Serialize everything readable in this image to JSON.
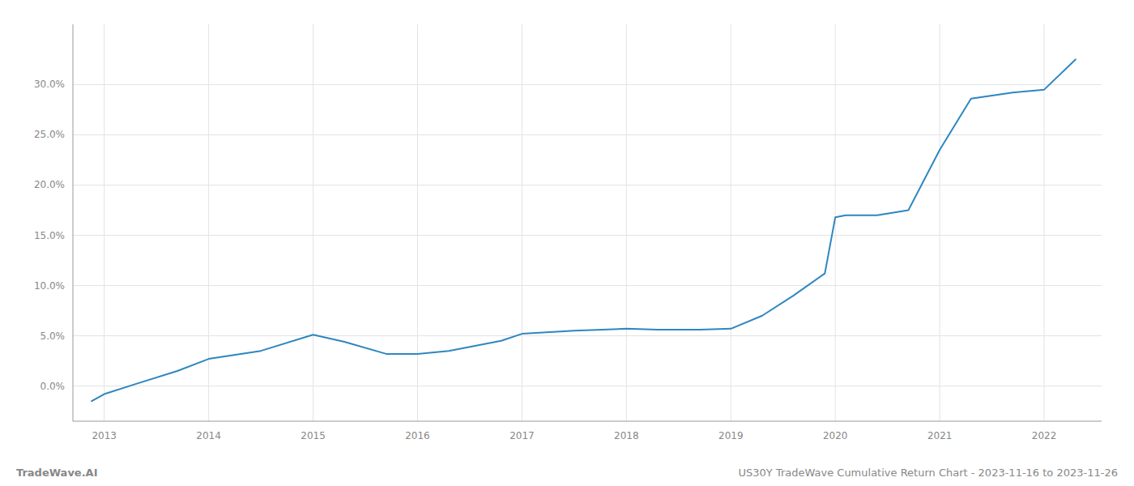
{
  "chart_data": {
    "type": "line",
    "x": [
      2012.88,
      2013.0,
      2013.3,
      2013.7,
      2014.0,
      2014.5,
      2015.0,
      2015.3,
      2015.7,
      2016.0,
      2016.3,
      2016.8,
      2017.0,
      2017.5,
      2018.0,
      2018.3,
      2018.7,
      2019.0,
      2019.3,
      2019.6,
      2019.9,
      2020.0,
      2020.1,
      2020.4,
      2020.7,
      2021.0,
      2021.3,
      2021.7,
      2022.0,
      2022.3
    ],
    "values": [
      -1.5,
      -0.8,
      0.2,
      1.5,
      2.7,
      3.5,
      5.1,
      4.4,
      3.2,
      3.2,
      3.5,
      4.5,
      5.2,
      5.5,
      5.7,
      5.6,
      5.6,
      5.7,
      7.0,
      9.0,
      11.2,
      16.8,
      17.0,
      17.0,
      17.5,
      23.5,
      28.6,
      29.2,
      29.5,
      32.5
    ],
    "color": "#2e86c1",
    "xlim": [
      2012.7,
      2022.55
    ],
    "xticks": [
      2013,
      2014,
      2015,
      2016,
      2017,
      2018,
      2019,
      2020,
      2021,
      2022
    ],
    "ylim": [
      -3.5,
      36.0
    ],
    "yticks": [
      {
        "value": 0.0,
        "label": "0.0%"
      },
      {
        "value": 5.0,
        "label": "5.0%"
      },
      {
        "value": 10.0,
        "label": "10.0%"
      },
      {
        "value": 15.0,
        "label": "15.0%"
      },
      {
        "value": 20.0,
        "label": "20.0%"
      },
      {
        "value": 25.0,
        "label": "25.0%"
      },
      {
        "value": 30.0,
        "label": "30.0%"
      }
    ],
    "grid": true,
    "annotations": [
      "TradeWave.AI",
      "US30Y TradeWave Cumulative Return Chart - 2023-11-16 to 2023-11-26"
    ]
  }
}
